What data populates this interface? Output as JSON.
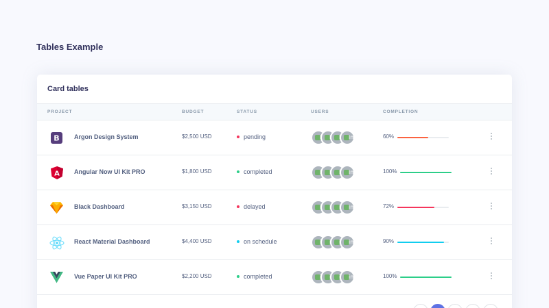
{
  "page": {
    "title": "Tables Example"
  },
  "card": {
    "title": "Card tables",
    "columns": [
      "Project",
      "Budget",
      "Status",
      "Users",
      "Completion"
    ],
    "rows": [
      {
        "project": "Argon Design System",
        "logo": "bootstrap-icon",
        "budget": "$2,500 USD",
        "status": "pending",
        "status_color": "#f5365c",
        "completion": "60%",
        "completion_value": 60,
        "bar_color": "#fb6340"
      },
      {
        "project": "Angular Now UI Kit PRO",
        "logo": "angular-icon",
        "budget": "$1,800 USD",
        "status": "completed",
        "status_color": "#2dce89",
        "completion": "100%",
        "completion_value": 100,
        "bar_color": "#2dce89"
      },
      {
        "project": "Black Dashboard",
        "logo": "sketch-icon",
        "budget": "$3,150 USD",
        "status": "delayed",
        "status_color": "#f5365c",
        "completion": "72%",
        "completion_value": 72,
        "bar_color": "#f5365c"
      },
      {
        "project": "React Material Dashboard",
        "logo": "react-icon",
        "budget": "$4,400 USD",
        "status": "on schedule",
        "status_color": "#11cdef",
        "completion": "90%",
        "completion_value": 90,
        "bar_color": "#11cdef"
      },
      {
        "project": "Vue Paper UI Kit PRO",
        "logo": "vue-icon",
        "budget": "$2,200 USD",
        "status": "completed",
        "status_color": "#2dce89",
        "completion": "100%",
        "completion_value": 100,
        "bar_color": "#2dce89"
      }
    ],
    "pagination": {
      "active_index": 1,
      "count": 5
    }
  }
}
